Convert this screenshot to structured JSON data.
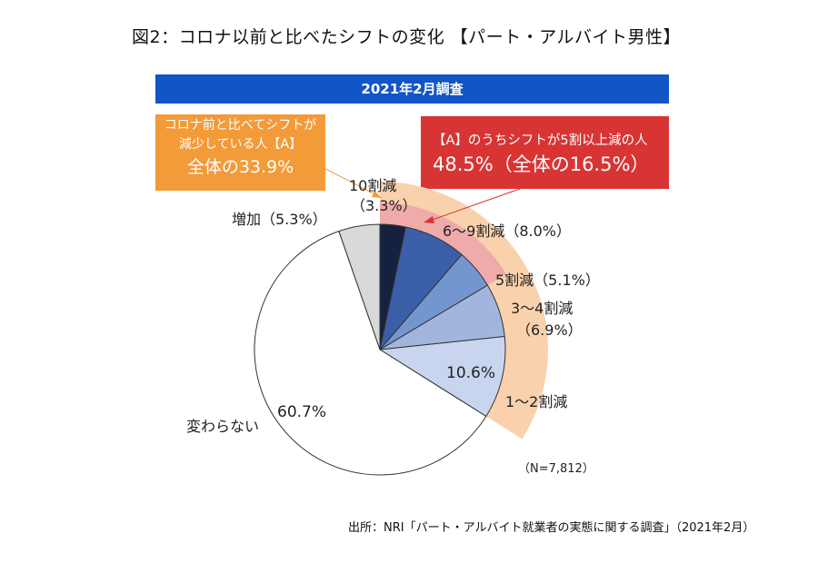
{
  "title": "図2：コロナ以前と比べたシフトの変化 【パート・アルバイト男性】",
  "banner": "2021年2月調査",
  "callout_orange": {
    "line1": "コロナ前と比べてシフトが",
    "line2": "減少している人【A】",
    "line3": "全体の33.9%",
    "color": "#f39a39"
  },
  "callout_red": {
    "line1": "【A】のうちシフトが5割以上減の人",
    "line2": "48.5%（全体の16.5%）",
    "color": "#d83434"
  },
  "sample_size": "（N=7,812）",
  "source": "出所：NRI「パート・アルバイト就業者の実態に関する調査」（2021年2月）",
  "chart_data": {
    "type": "pie",
    "title": "図2：コロナ以前と比べたシフトの変化 【パート・アルバイト男性】",
    "start": "top",
    "direction": "clockwise",
    "slices": [
      {
        "name": "10割減",
        "value": 3.3,
        "color": "#15213f",
        "label_a": "10割減",
        "label_b": "（3.3%）"
      },
      {
        "name": "6〜9割減",
        "value": 8.0,
        "color": "#3a5fa8",
        "label_a": "6〜9割減（8.0%）",
        "label_b": ""
      },
      {
        "name": "5割減",
        "value": 5.1,
        "color": "#7396cf",
        "label_a": "5割減（5.1%）",
        "label_b": ""
      },
      {
        "name": "3〜4割減",
        "value": 6.9,
        "color": "#a2b6dd",
        "label_a": "3〜4割減",
        "label_b": "（6.9%）"
      },
      {
        "name": "1〜2割減",
        "value": 10.6,
        "color": "#c9d5ee",
        "label_a": "1〜2割減",
        "label_b": "10.6%"
      },
      {
        "name": "変わらない",
        "value": 60.7,
        "color": "#ffffff",
        "label_a": "変わらない",
        "label_b": "60.7%"
      },
      {
        "name": "増加",
        "value": 5.3,
        "color": "#d9d9d9",
        "label_a": "増加（5.3%）",
        "label_b": ""
      }
    ],
    "highlight_rings": [
      {
        "name": "シフト減少【A】",
        "total": 33.9,
        "covers": [
          "10割減",
          "6〜9割減",
          "5割減",
          "3〜4割減",
          "1〜2割減"
        ],
        "color": "#f9d2ad"
      },
      {
        "name": "5割以上減",
        "total": 16.5,
        "covers": [
          "10割減",
          "6〜9割減",
          "5割減"
        ],
        "color": "#efaaaa"
      }
    ]
  }
}
